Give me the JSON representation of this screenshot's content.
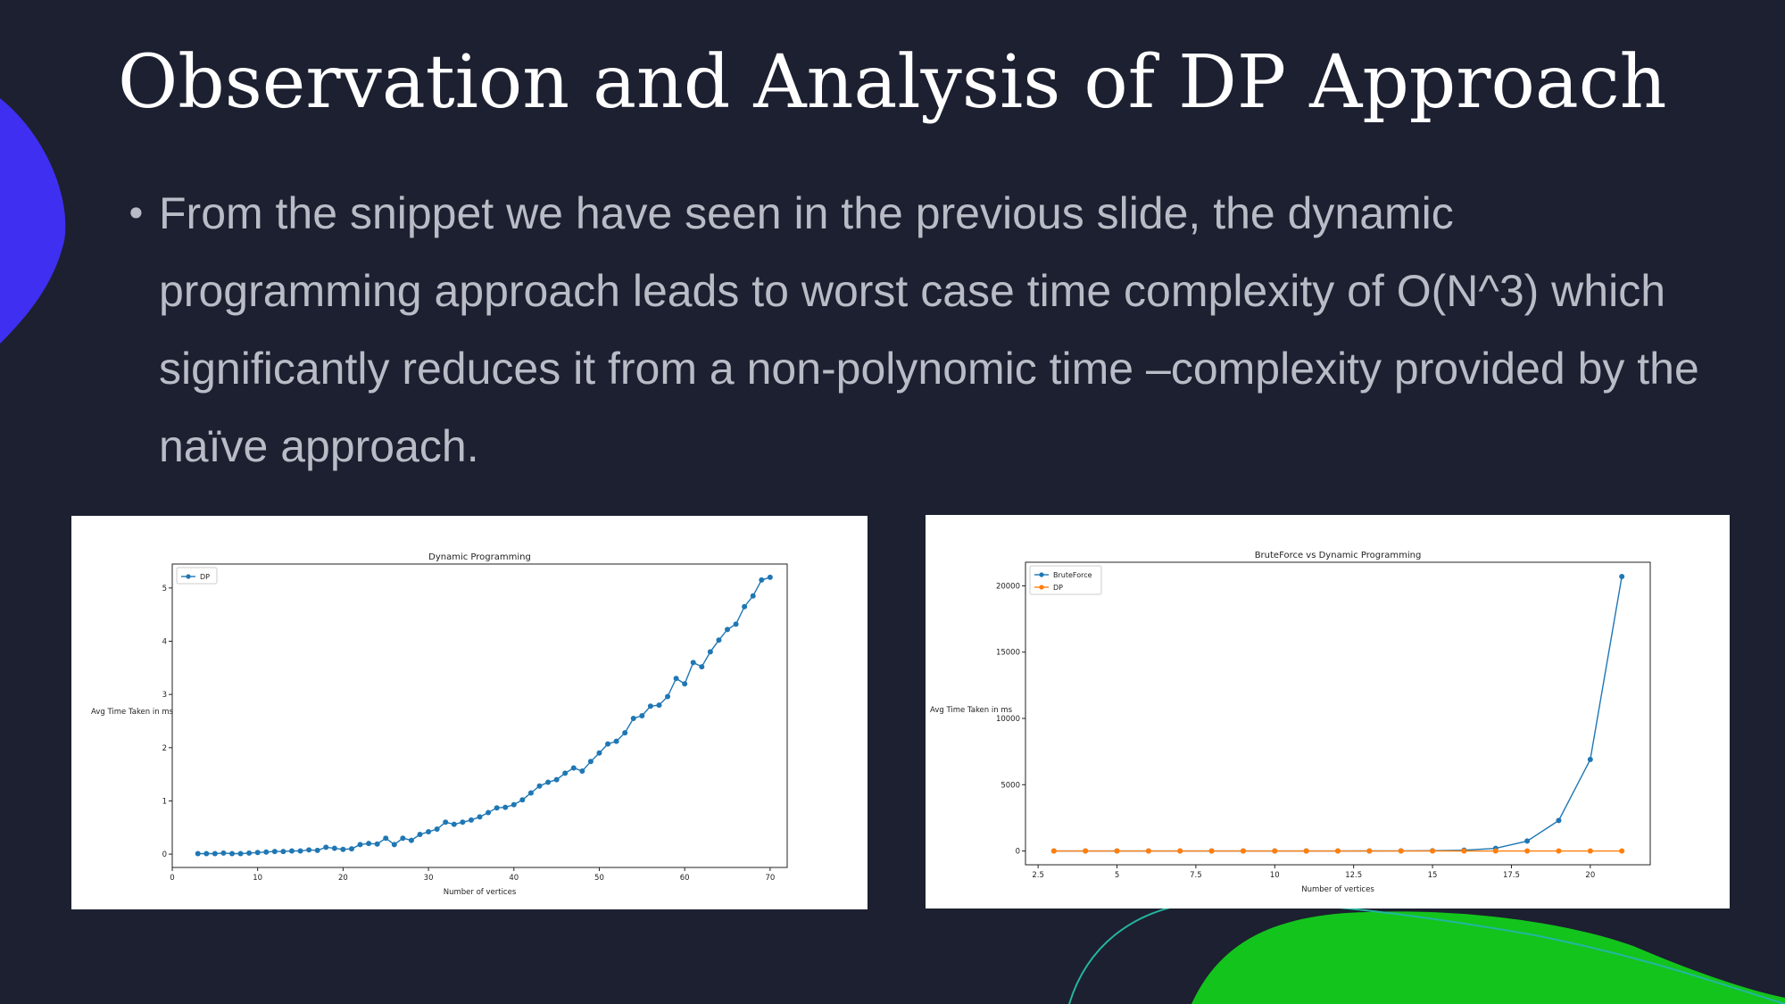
{
  "slide": {
    "title": "Observation and Analysis of DP Approach",
    "bullet": "From the snippet we have seen in the previous slide, the dynamic programming approach leads to worst case time complexity of O(N^3) which significantly reduces it from a non-polynomic time –complexity provided by the naïve approach."
  },
  "theme": {
    "background": "#1c2030",
    "accent_blue": "#3f2ff0",
    "accent_green": "#13c41c",
    "accent_teal": "#24b6a0",
    "text_muted": "#b9bcc6"
  },
  "chart_data": [
    {
      "type": "line",
      "title": "Dynamic Programming",
      "xlabel": "Number of vertices",
      "ylabel": "Avg Time Taken in ms",
      "xlim": [
        0,
        72
      ],
      "ylim": [
        -0.25,
        5.45
      ],
      "xticks": [
        0,
        10,
        20,
        30,
        40,
        50,
        60,
        70
      ],
      "yticks": [
        0,
        1,
        2,
        3,
        4,
        5
      ],
      "legend_position": "upper-left",
      "grid": false,
      "x": [
        3,
        4,
        5,
        6,
        7,
        8,
        9,
        10,
        11,
        12,
        13,
        14,
        15,
        16,
        17,
        18,
        19,
        20,
        21,
        22,
        23,
        24,
        25,
        26,
        27,
        28,
        29,
        30,
        31,
        32,
        33,
        34,
        35,
        36,
        37,
        38,
        39,
        40,
        41,
        42,
        43,
        44,
        45,
        46,
        47,
        48,
        49,
        50,
        51,
        52,
        53,
        54,
        55,
        56,
        57,
        58,
        59,
        60,
        61,
        62,
        63,
        64,
        65,
        66,
        67,
        68,
        69,
        70
      ],
      "series": [
        {
          "name": "DP",
          "color": "#1f77b4",
          "values": [
            0.01,
            0.01,
            0.01,
            0.02,
            0.01,
            0.01,
            0.02,
            0.03,
            0.04,
            0.05,
            0.05,
            0.06,
            0.06,
            0.08,
            0.07,
            0.13,
            0.11,
            0.09,
            0.1,
            0.18,
            0.2,
            0.19,
            0.3,
            0.18,
            0.3,
            0.26,
            0.37,
            0.42,
            0.47,
            0.6,
            0.56,
            0.6,
            0.64,
            0.7,
            0.78,
            0.87,
            0.88,
            0.93,
            1.02,
            1.15,
            1.28,
            1.35,
            1.4,
            1.52,
            1.62,
            1.56,
            1.74,
            1.9,
            2.07,
            2.12,
            2.28,
            2.55,
            2.6,
            2.78,
            2.8,
            2.96,
            3.3,
            3.2,
            3.6,
            3.52,
            3.8,
            4.02,
            4.22,
            4.32,
            4.65,
            4.85,
            5.15,
            5.2
          ]
        }
      ]
    },
    {
      "type": "line",
      "title": "BruteForce vs Dynamic Programming",
      "xlabel": "Number of vertices",
      "ylabel": "Avg Time Taken in ms",
      "xlim": [
        2.1,
        21.9
      ],
      "ylim": [
        -1040,
        21780
      ],
      "xticks": [
        2.5,
        5.0,
        7.5,
        10.0,
        12.5,
        15.0,
        17.5,
        20.0
      ],
      "yticks": [
        0,
        5000,
        10000,
        15000,
        20000
      ],
      "legend_position": "upper-left",
      "grid": false,
      "x": [
        3,
        4,
        5,
        6,
        7,
        8,
        9,
        10,
        11,
        12,
        13,
        14,
        15,
        16,
        17,
        18,
        19,
        20,
        21
      ],
      "series": [
        {
          "name": "BruteForce",
          "color": "#1f77b4",
          "values": [
            0,
            0,
            0,
            0,
            0,
            0,
            0,
            0,
            1,
            2,
            4,
            9,
            20,
            60,
            200,
            750,
            2300,
            6900,
            20700
          ]
        },
        {
          "name": "DP",
          "color": "#ff7f0e",
          "values": [
            0,
            0,
            0,
            0,
            0,
            0,
            0,
            0,
            0,
            0,
            0,
            0,
            0,
            0,
            0,
            0,
            0,
            0,
            0
          ]
        }
      ]
    }
  ]
}
